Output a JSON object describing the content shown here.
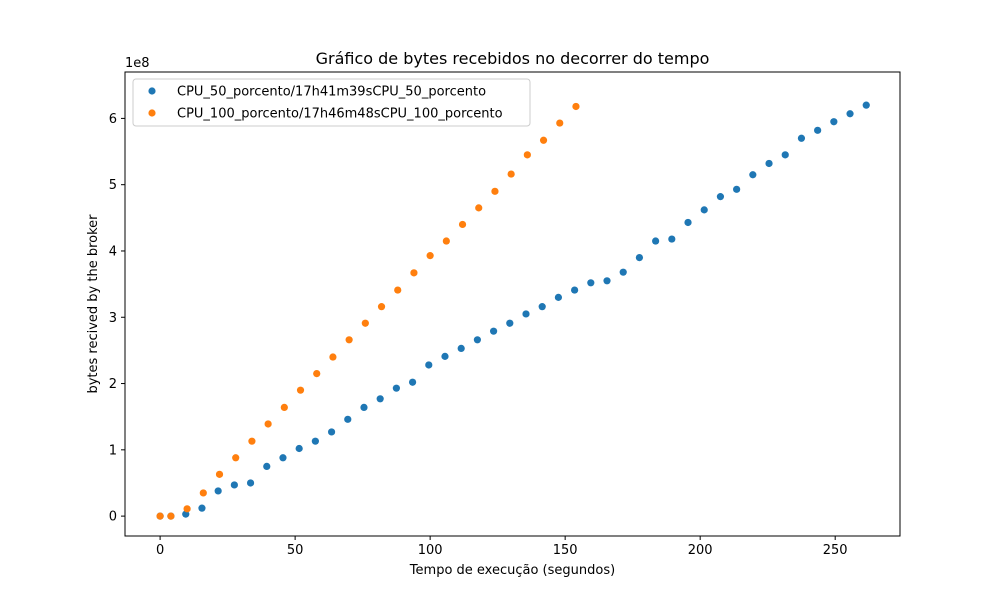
{
  "chart_data": {
    "type": "scatter",
    "title": "Gráfico de bytes recebidos no decorrer do tempo",
    "xlabel": "Tempo de execução (segundos)",
    "ylabel": "bytes recived by the broker",
    "y_scale_label": "1e8",
    "xlim": [
      -13,
      274
    ],
    "ylim": [
      -0.3,
      6.7
    ],
    "x_ticks": [
      0,
      50,
      100,
      150,
      200,
      250
    ],
    "y_ticks": [
      0,
      1,
      2,
      3,
      4,
      5,
      6
    ],
    "grid": false,
    "legend_position": "top-left",
    "series": [
      {
        "name": "CPU_50_porcento/17h41m39sCPU_50_porcento",
        "color": "#1f77b4",
        "x": [
          0,
          4,
          9.5,
          15.5,
          21.5,
          27.5,
          33.5,
          39.5,
          45.5,
          51.5,
          57.5,
          63.5,
          69.5,
          75.5,
          81.5,
          87.5,
          93.5,
          99.5,
          105.5,
          111.5,
          117.5,
          123.5,
          129.5,
          135.5,
          141.5,
          147.5,
          153.5,
          159.5,
          165.5,
          171.5,
          177.5,
          183.5,
          189.5,
          195.5,
          201.5,
          207.5,
          213.5,
          219.5,
          225.5,
          231.5,
          237.5,
          243.5,
          249.5,
          255.5,
          261.5
        ],
        "y": [
          0.0,
          0.0,
          0.03,
          0.12,
          0.38,
          0.47,
          0.5,
          0.75,
          0.88,
          1.02,
          1.13,
          1.27,
          1.46,
          1.64,
          1.77,
          1.93,
          2.02,
          2.28,
          2.41,
          2.53,
          2.66,
          2.79,
          2.91,
          3.05,
          3.16,
          3.3,
          3.41,
          3.52,
          3.55,
          3.68,
          3.9,
          4.15,
          4.18,
          4.43,
          4.62,
          4.82,
          4.93,
          5.15,
          5.32,
          5.45,
          5.7,
          5.82,
          5.95,
          6.07,
          6.2
        ]
      },
      {
        "name": "CPU_100_porcento/17h46m48sCPU_100_porcento",
        "color": "#ff7f0e",
        "x": [
          0,
          4,
          10,
          16,
          22,
          28,
          34,
          40,
          46,
          52,
          58,
          64,
          70,
          76,
          82,
          88,
          94,
          100,
          106,
          112,
          118,
          124,
          130,
          136,
          142,
          148,
          154
        ],
        "y": [
          0.0,
          0.0,
          0.11,
          0.35,
          0.63,
          0.88,
          1.13,
          1.39,
          1.64,
          1.9,
          2.15,
          2.4,
          2.66,
          2.91,
          3.16,
          3.41,
          3.67,
          3.93,
          4.15,
          4.4,
          4.65,
          4.9,
          5.16,
          5.45,
          5.67,
          5.93,
          6.18
        ]
      }
    ]
  }
}
